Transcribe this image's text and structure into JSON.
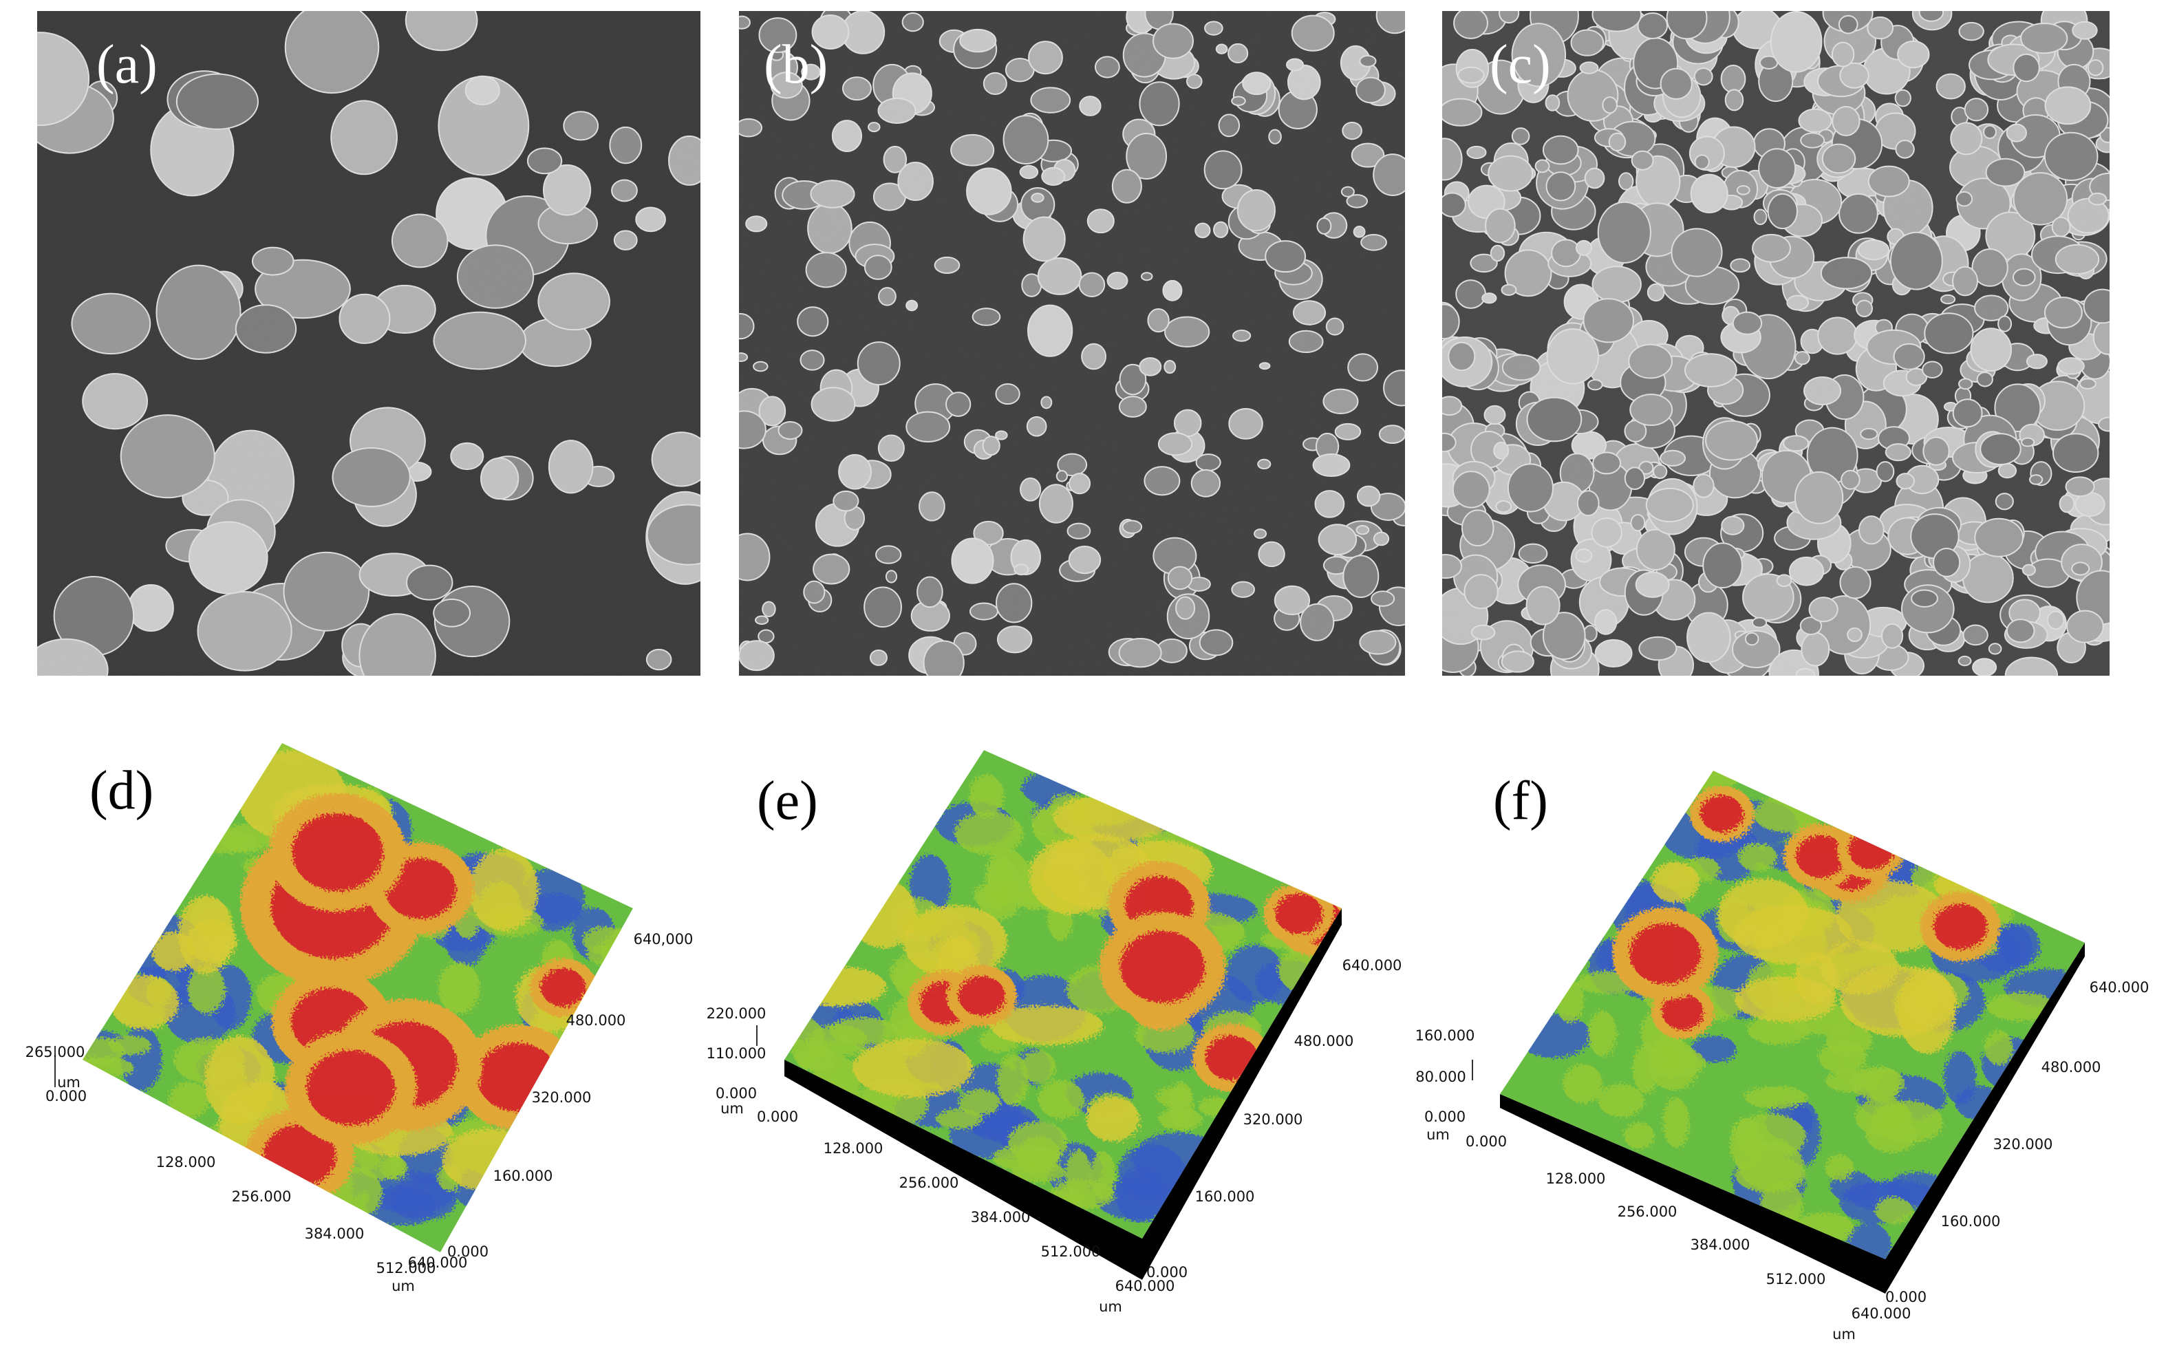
{
  "panels": [
    {
      "label": "(a)"
    },
    {
      "label": "(b)"
    },
    {
      "label": "(c)"
    },
    {
      "label": "(d)",
      "z_ticks": [
        "265.000"
      ],
      "z_unit": "um",
      "x_ticks": [
        "0.000",
        "128.000",
        "256.000",
        "384.000",
        "512.000",
        "640.000"
      ],
      "x_unit": "um",
      "y_ticks": [
        "0.000",
        "160.000",
        "320.000",
        "480.000",
        "640,000"
      ]
    },
    {
      "label": "(e)",
      "z_ticks": [
        "0.000",
        "110.000",
        "220.000"
      ],
      "z_unit": "um",
      "x_ticks": [
        "0.000",
        "128.000",
        "256.000",
        "384.000",
        "512.000",
        "640.000"
      ],
      "x_unit": "um",
      "y_ticks": [
        "0.000",
        "160.000",
        "320.000",
        "480.000",
        "640.000"
      ]
    },
    {
      "label": "(f)",
      "z_ticks": [
        "0.000",
        "80.000",
        "160.000"
      ],
      "z_unit": "um",
      "x_ticks": [
        "0.000",
        "128.000",
        "256.000",
        "384.000",
        "512.000",
        "640.000"
      ],
      "x_unit": "um",
      "y_ticks": [
        "0.000",
        "160.000",
        "320.000",
        "480.000",
        "640.000"
      ]
    }
  ]
}
